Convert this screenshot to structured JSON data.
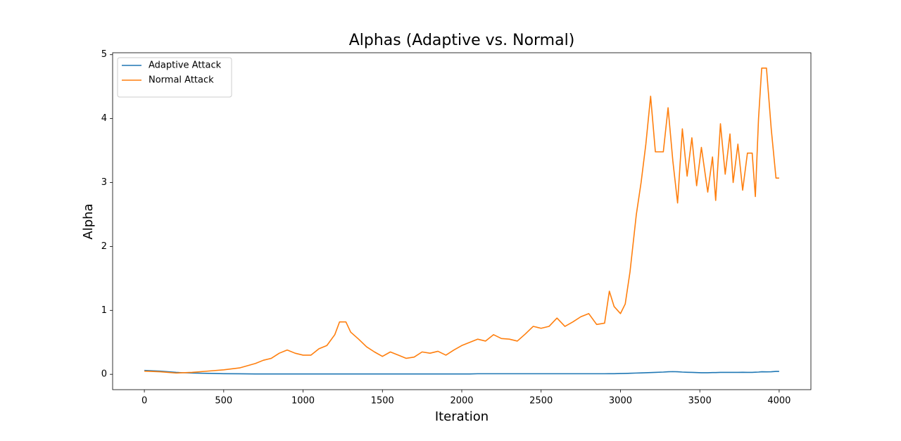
{
  "chart_data": {
    "type": "line",
    "title": "Alphas (Adaptive vs. Normal)",
    "x_label": "Iteration",
    "y_label": "Alpha",
    "x": [
      0,
      100,
      200,
      300,
      400,
      500,
      600,
      700,
      750,
      800,
      850,
      900,
      950,
      1000,
      1050,
      1100,
      1150,
      1200,
      1230,
      1270,
      1300,
      1350,
      1400,
      1450,
      1500,
      1550,
      1600,
      1650,
      1700,
      1750,
      1800,
      1850,
      1900,
      1950,
      2000,
      2050,
      2100,
      2150,
      2200,
      2250,
      2300,
      2350,
      2400,
      2450,
      2500,
      2550,
      2600,
      2650,
      2700,
      2750,
      2800,
      2850,
      2900,
      2930,
      2960,
      3000,
      3030,
      3060,
      3100,
      3130,
      3160,
      3190,
      3220,
      3270,
      3300,
      3330,
      3360,
      3390,
      3420,
      3450,
      3480,
      3510,
      3550,
      3580,
      3600,
      3630,
      3660,
      3690,
      3710,
      3740,
      3770,
      3800,
      3830,
      3850,
      3870,
      3890,
      3920,
      3950,
      3980,
      4000
    ],
    "series": [
      {
        "name": "Adaptive Attack",
        "color": "#1f77b4",
        "values": [
          0.06,
          0.05,
          0.03,
          0.02,
          0.015,
          0.01,
          0.008,
          0.006,
          0.005,
          0.005,
          0.005,
          0.005,
          0.005,
          0.005,
          0.005,
          0.005,
          0.005,
          0.005,
          0.005,
          0.005,
          0.006,
          0.006,
          0.006,
          0.006,
          0.006,
          0.006,
          0.006,
          0.006,
          0.006,
          0.006,
          0.006,
          0.006,
          0.006,
          0.006,
          0.006,
          0.006,
          0.009,
          0.009,
          0.009,
          0.009,
          0.009,
          0.009,
          0.009,
          0.009,
          0.009,
          0.009,
          0.009,
          0.009,
          0.009,
          0.009,
          0.009,
          0.009,
          0.009,
          0.01,
          0.01,
          0.012,
          0.014,
          0.016,
          0.02,
          0.022,
          0.025,
          0.028,
          0.03,
          0.035,
          0.04,
          0.042,
          0.04,
          0.035,
          0.032,
          0.03,
          0.028,
          0.025,
          0.025,
          0.027,
          0.028,
          0.03,
          0.03,
          0.03,
          0.03,
          0.03,
          0.032,
          0.03,
          0.03,
          0.033,
          0.035,
          0.04,
          0.038,
          0.04,
          0.045,
          0.045
        ]
      },
      {
        "name": "Normal Attack",
        "color": "#ff7f0e",
        "values": [
          0.05,
          0.04,
          0.02,
          0.03,
          0.05,
          0.07,
          0.1,
          0.17,
          0.22,
          0.25,
          0.33,
          0.38,
          0.33,
          0.3,
          0.3,
          0.4,
          0.45,
          0.62,
          0.82,
          0.82,
          0.66,
          0.55,
          0.43,
          0.35,
          0.28,
          0.35,
          0.3,
          0.25,
          0.27,
          0.35,
          0.33,
          0.36,
          0.3,
          0.38,
          0.45,
          0.5,
          0.55,
          0.52,
          0.62,
          0.56,
          0.55,
          0.52,
          0.63,
          0.75,
          0.72,
          0.75,
          0.88,
          0.75,
          0.82,
          0.9,
          0.95,
          0.78,
          0.8,
          1.3,
          1.06,
          0.95,
          1.1,
          1.6,
          2.5,
          3.0,
          3.6,
          4.35,
          3.48,
          3.48,
          4.17,
          3.34,
          2.68,
          3.84,
          3.1,
          3.7,
          2.95,
          3.55,
          2.85,
          3.4,
          2.72,
          3.92,
          3.13,
          3.76,
          3.0,
          3.6,
          2.88,
          3.46,
          3.46,
          2.78,
          4.0,
          4.79,
          4.79,
          3.84,
          3.07,
          3.07
        ]
      }
    ],
    "xlim": [
      -200,
      4200
    ],
    "xticks": [
      0,
      500,
      1000,
      1500,
      2000,
      2500,
      3000,
      3500,
      4000
    ],
    "ylim": [
      -0.24,
      5.03
    ],
    "yticks": [
      0,
      1,
      2,
      3,
      4,
      5
    ],
    "grid": false,
    "legend": "upper-left"
  }
}
